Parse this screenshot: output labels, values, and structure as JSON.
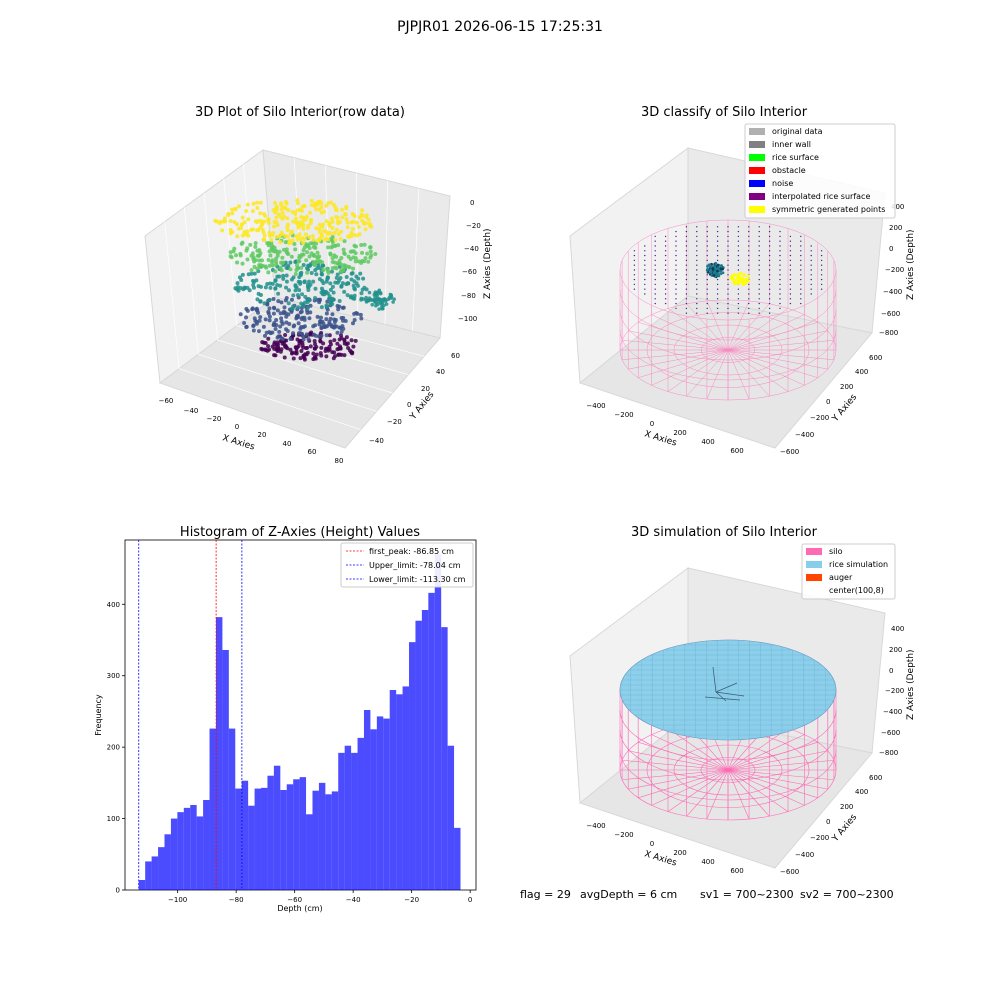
{
  "suptitle": "PJPJR01 2026-06-15 17:25:31",
  "panels": {
    "raw": {
      "title": "3D Plot of Silo Interior(row data)",
      "xlabel": "X Axies",
      "ylabel": "Y Axies",
      "zlabel": "Z Axies (Depth)",
      "xticks": [
        "−60",
        "−40",
        "−20",
        "0",
        "20",
        "40",
        "60",
        "80"
      ],
      "yticks": [
        "−40",
        "−20",
        "0",
        "20",
        "40",
        "60"
      ],
      "zticks": [
        "0",
        "−20",
        "−40",
        "−60",
        "−80",
        "−100"
      ]
    },
    "classify": {
      "title": "3D classify of Silo Interior",
      "xlabel": "X Axies",
      "ylabel": "Y Axies",
      "zlabel": "Z Axies (Depth)",
      "xticks": [
        "−400",
        "−200",
        "0",
        "200",
        "400",
        "600"
      ],
      "yticks": [
        "−600",
        "−400",
        "−200",
        "0",
        "200",
        "400",
        "600"
      ],
      "zticks": [
        "400",
        "200",
        "0",
        "−200",
        "−400",
        "−600",
        "−800"
      ],
      "legend": [
        {
          "label": "original data",
          "color": "#b0b0b0"
        },
        {
          "label": "inner wall",
          "color": "#808080"
        },
        {
          "label": "rice surface",
          "color": "#00ff00"
        },
        {
          "label": "obstacle",
          "color": "#ff0000"
        },
        {
          "label": "noise",
          "color": "#0000ff"
        },
        {
          "label": "interpolated rice surface",
          "color": "#800080"
        },
        {
          "label": "symmetric generated points",
          "color": "#ffff00"
        }
      ]
    },
    "simulation": {
      "title": "3D simulation of Silo Interior",
      "xlabel": "X Axies",
      "ylabel": "Y Axies",
      "zlabel": "Z Axies (Depth)",
      "xticks": [
        "−400",
        "−200",
        "0",
        "200",
        "400",
        "600"
      ],
      "yticks": [
        "−600",
        "−400",
        "−200",
        "0",
        "200",
        "400",
        "600"
      ],
      "zticks": [
        "400",
        "200",
        "0",
        "−200",
        "−400",
        "−600",
        "−800"
      ],
      "legend": [
        {
          "label": "silo",
          "color": "#ff69b4"
        },
        {
          "label": "rice simulation",
          "color": "#87ceeb"
        },
        {
          "label": "auger",
          "color": "#ff4500"
        },
        {
          "label": "center(100,8)",
          "color": "#ffffff"
        }
      ]
    }
  },
  "status": {
    "flag": "flag = 29",
    "avg_depth": "avgDepth = 6 cm",
    "sv1": "sv1 = 700~2300",
    "sv2": "sv2 = 700~2300"
  },
  "chart_data": [
    {
      "type": "histogram",
      "title": "Histogram of Z-Axies (Height) Values",
      "xlabel": "Depth (cm)",
      "ylabel": "Frequency",
      "xlim": [
        -118,
        2
      ],
      "ylim": [
        0,
        490
      ],
      "xticks": [
        -100,
        -80,
        -60,
        -40,
        -20,
        0
      ],
      "xtick_labels": [
        "−100",
        "−80",
        "−60",
        "−40",
        "−20",
        "0"
      ],
      "yticks": [
        0,
        100,
        200,
        300,
        400
      ],
      "bar_color": "#0000ff",
      "bin_start": -113.3,
      "bin_width": 2.2,
      "values": [
        14,
        40,
        47,
        60,
        78,
        100,
        109,
        115,
        119,
        103,
        126,
        226,
        382,
        336,
        226,
        142,
        153,
        118,
        142,
        143,
        160,
        174,
        140,
        148,
        155,
        158,
        106,
        139,
        150,
        134,
        138,
        192,
        202,
        192,
        213,
        252,
        225,
        243,
        240,
        280,
        274,
        285,
        347,
        377,
        392,
        416,
        470,
        368,
        202,
        87
      ],
      "vlines": [
        {
          "x": -86.85,
          "color": "#ff0000",
          "label": "first_peak: -86.85 cm"
        },
        {
          "x": -78.04,
          "color": "#0000ff",
          "label": "Upper_limit: -78.04 cm"
        },
        {
          "x": -113.3,
          "color": "#0000ff",
          "label": "Lower_limit: -113.30 cm"
        }
      ],
      "legend_position": "top-right"
    }
  ]
}
